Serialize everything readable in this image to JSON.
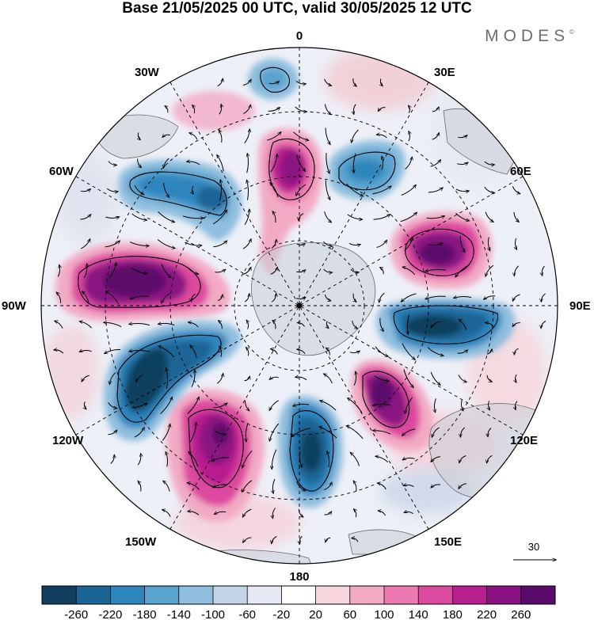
{
  "title": "Base 21/05/2025 00 UTC, valid 30/05/2025 12 UTC",
  "brand": {
    "name": "MODES",
    "mark": "©"
  },
  "longitude_labels": [
    "0",
    "30E",
    "60E",
    "90E",
    "120E",
    "150E",
    "180",
    "150W",
    "120W",
    "90W",
    "60W",
    "30W"
  ],
  "vector_scale": {
    "label": "30"
  },
  "colorbar": {
    "ticks": [
      "-260",
      "-220",
      "-180",
      "-140",
      "-100",
      "-60",
      "-20",
      "20",
      "60",
      "100",
      "140",
      "180",
      "220",
      "260"
    ],
    "colors": [
      "#0f3f5c",
      "#1a6596",
      "#2f86bd",
      "#5aa3cf",
      "#8fbede",
      "#c3d3e8",
      "#e5e8f3",
      "#ffffff",
      "#f8d6dd",
      "#f2aac4",
      "#ec7ab0",
      "#dc4a9f",
      "#b81f8e",
      "#8a1282",
      "#5b0b6b"
    ]
  },
  "anomaly_centers": [
    {
      "name": "positive-anomaly-lon0",
      "sign": "positive",
      "level": "strong"
    },
    {
      "name": "negative-anomaly-lon30e",
      "sign": "negative",
      "level": "moderate"
    },
    {
      "name": "positive-anomaly-lon65e",
      "sign": "positive",
      "level": "strong"
    },
    {
      "name": "negative-anomaly-lon95e",
      "sign": "negative",
      "level": "strong"
    },
    {
      "name": "positive-anomaly-lon140e",
      "sign": "positive",
      "level": "strong"
    },
    {
      "name": "negative-anomaly-lon175e",
      "sign": "negative",
      "level": "strong"
    },
    {
      "name": "positive-anomaly-lon150w",
      "sign": "positive",
      "level": "strong"
    },
    {
      "name": "negative-anomaly-lon120w",
      "sign": "negative",
      "level": "strong"
    },
    {
      "name": "positive-anomaly-lon85w",
      "sign": "positive",
      "level": "strong"
    },
    {
      "name": "negative-anomaly-lon50w",
      "sign": "negative",
      "level": "strong"
    },
    {
      "name": "negative-anomaly-lon5w",
      "sign": "negative",
      "level": "moderate"
    },
    {
      "name": "positive-anomaly-lon15w",
      "sign": "positive",
      "level": "weak"
    },
    {
      "name": "positive-anomaly-lon35e",
      "sign": "positive",
      "level": "weak"
    }
  ]
}
